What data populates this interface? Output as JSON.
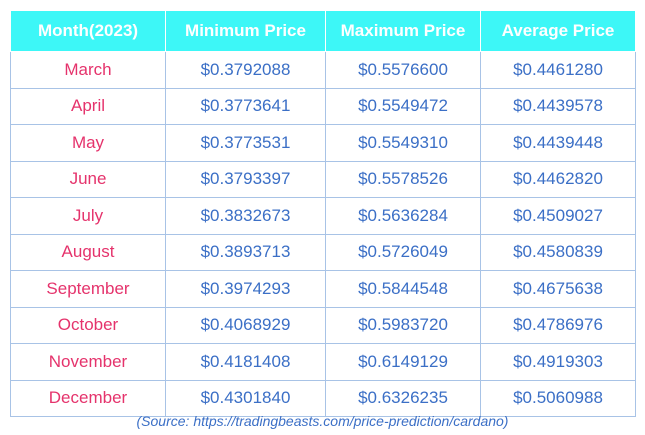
{
  "table": {
    "header": [
      "Month(2023)",
      "Minimum Price",
      "Maximum Price",
      "Average Price"
    ],
    "rows": [
      [
        "March",
        "$0.3792088",
        "$0.5576600",
        "$0.4461280"
      ],
      [
        "April",
        "$0.3773641",
        "$0.5549472",
        "$0.4439578"
      ],
      [
        "May",
        "$0.3773531",
        "$0.5549310",
        "$0.4439448"
      ],
      [
        "June",
        "$0.3793397",
        "$0.5578526",
        "$0.4462820"
      ],
      [
        "July",
        "$0.3832673",
        "$0.5636284",
        "$0.4509027"
      ],
      [
        "August",
        "$0.3893713",
        "$0.5726049",
        "$0.4580839"
      ],
      [
        "September",
        "$0.3974293",
        "$0.5844548",
        "$0.4675638"
      ],
      [
        "October",
        "$0.4068929",
        "$0.5983720",
        "$0.4786976"
      ],
      [
        "November",
        "$0.4181408",
        "$0.6149129",
        "$0.4919303"
      ],
      [
        "December",
        "$0.4301840",
        "$0.6326235",
        "$0.5060988"
      ]
    ]
  },
  "source": "(Source: https://tradingbeasts.com/price-prediction/cardano)"
}
